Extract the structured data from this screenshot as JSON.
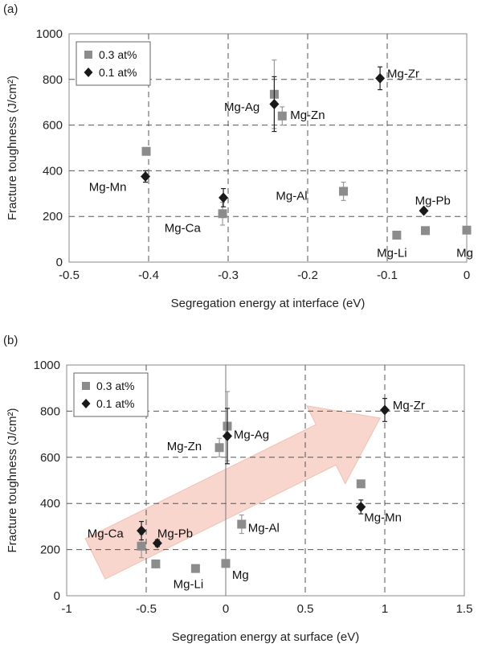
{
  "chart_data": [
    {
      "type": "scatter",
      "panel_label": "(a)",
      "xlabel": "Segregation energy at interface (eV)",
      "ylabel": "Fracture toughness (J/cm²)",
      "xlim": [
        -0.5,
        0
      ],
      "ylim": [
        0,
        1000
      ],
      "x_ticks": [
        -0.5,
        -0.4,
        -0.3,
        -0.2,
        -0.1,
        0
      ],
      "x_tick_labels": [
        "-0.5",
        "-0.4",
        "-0.3",
        "-0.2",
        "-0.1",
        "0"
      ],
      "y_ticks": [
        0,
        200,
        400,
        600,
        800,
        1000
      ],
      "y_tick_labels": [
        "0",
        "200",
        "400",
        "600",
        "800",
        "1000"
      ],
      "grid": true,
      "legend_position": "top-left",
      "series": [
        {
          "name": "0.3 at%",
          "marker": "square",
          "color": "#8c8c8c",
          "points": [
            {
              "x": -0.403,
              "y": 485,
              "err": 0
            },
            {
              "x": -0.307,
              "y": 212,
              "err": 50
            },
            {
              "x": -0.242,
              "y": 735,
              "err": 150
            },
            {
              "x": -0.232,
              "y": 640,
              "err": 40
            },
            {
              "x": -0.155,
              "y": 310,
              "err": 40
            },
            {
              "x": -0.088,
              "y": 118,
              "err": 0
            },
            {
              "x": -0.052,
              "y": 138,
              "err": 0
            },
            {
              "x": 0.0,
              "y": 140,
              "err": 0
            }
          ]
        },
        {
          "name": "0.1 at%",
          "marker": "diamond",
          "color": "#1a1a1a",
          "points": [
            {
              "x": -0.404,
              "y": 375,
              "err": 25
            },
            {
              "x": -0.306,
              "y": 282,
              "err": 40
            },
            {
              "x": -0.242,
              "y": 692,
              "err": 120
            },
            {
              "x": -0.109,
              "y": 805,
              "err": 50
            },
            {
              "x": -0.054,
              "y": 225,
              "err": 10
            }
          ]
        }
      ],
      "annotations": [
        {
          "text": "Mg-Zr",
          "x": -0.1,
          "y": 825
        },
        {
          "text": "Mg-Ag",
          "x": -0.305,
          "y": 680
        },
        {
          "text": "Mg-Zn",
          "x": -0.222,
          "y": 645
        },
        {
          "text": "Mg-Mn",
          "x": -0.475,
          "y": 330
        },
        {
          "text": "Mg-Al",
          "x": -0.24,
          "y": 290
        },
        {
          "text": "Mg-Pb",
          "x": -0.065,
          "y": 270
        },
        {
          "text": "Mg-Ca",
          "x": -0.38,
          "y": 150
        },
        {
          "text": "Mg-Li",
          "x": -0.113,
          "y": 40
        },
        {
          "text": "Mg",
          "x": -0.013,
          "y": 40
        }
      ]
    },
    {
      "type": "scatter",
      "panel_label": "(b)",
      "xlabel": "Segregation energy at surface (eV)",
      "ylabel": "Fracture toughness (J/cm²)",
      "xlim": [
        -1,
        1.5
      ],
      "ylim": [
        0,
        1000
      ],
      "x_ticks": [
        -1,
        -0.5,
        0,
        0.5,
        1,
        1.5
      ],
      "x_tick_labels": [
        "-1",
        "-0.5",
        "0",
        "0.5",
        "1",
        "1.5"
      ],
      "y_ticks": [
        0,
        200,
        400,
        600,
        800,
        1000
      ],
      "y_tick_labels": [
        "0",
        "200",
        "400",
        "600",
        "800",
        "1000"
      ],
      "grid": true,
      "legend_position": "top-left",
      "arrow": {
        "from": [
          -0.82,
          160
        ],
        "to": [
          0.97,
          770
        ],
        "color": "#f7cfc4"
      },
      "series": [
        {
          "name": "0.3 at%",
          "marker": "square",
          "color": "#8c8c8c",
          "points": [
            {
              "x": -0.53,
              "y": 215,
              "err": 50
            },
            {
              "x": -0.44,
              "y": 138,
              "err": 0
            },
            {
              "x": -0.19,
              "y": 118,
              "err": 0
            },
            {
              "x": -0.04,
              "y": 642,
              "err": 40
            },
            {
              "x": 0.0,
              "y": 140,
              "err": 0
            },
            {
              "x": 0.01,
              "y": 735,
              "err": 150
            },
            {
              "x": 0.1,
              "y": 310,
              "err": 40
            },
            {
              "x": 0.85,
              "y": 485,
              "err": 0
            }
          ]
        },
        {
          "name": "0.1 at%",
          "marker": "diamond",
          "color": "#1a1a1a",
          "points": [
            {
              "x": -0.53,
              "y": 282,
              "err": 40
            },
            {
              "x": -0.43,
              "y": 228,
              "err": 15
            },
            {
              "x": 0.01,
              "y": 692,
              "err": 120
            },
            {
              "x": 0.85,
              "y": 385,
              "err": 30
            },
            {
              "x": 1.0,
              "y": 805,
              "err": 50
            }
          ]
        }
      ],
      "annotations": [
        {
          "text": "Mg-Zr",
          "x": 1.05,
          "y": 825
        },
        {
          "text": "Mg-Zn",
          "x": -0.37,
          "y": 648
        },
        {
          "text": "Mg-Ag",
          "x": 0.05,
          "y": 698
        },
        {
          "text": "Mg-Mn",
          "x": 0.87,
          "y": 340
        },
        {
          "text": "Mg-Al",
          "x": 0.14,
          "y": 295
        },
        {
          "text": "Mg-Ca",
          "x": -0.87,
          "y": 270
        },
        {
          "text": "Mg-Pb",
          "x": -0.43,
          "y": 270
        },
        {
          "text": "Mg-Li",
          "x": -0.33,
          "y": 50
        },
        {
          "text": "Mg",
          "x": 0.04,
          "y": 90
        }
      ]
    }
  ]
}
